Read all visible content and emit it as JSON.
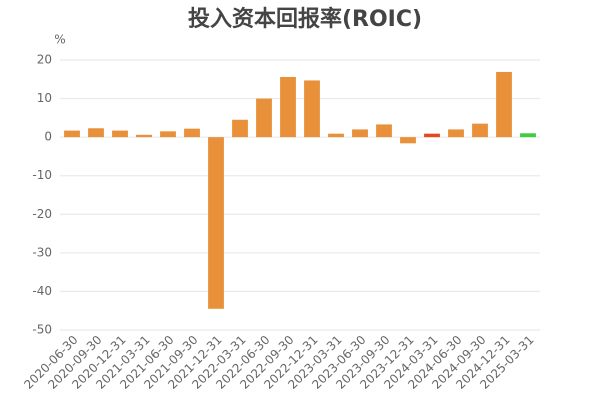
{
  "chart_data": {
    "type": "bar",
    "title": "投入资本回报率(ROIC)",
    "y_label": "%",
    "categories": [
      "2020-06-30",
      "2020-09-30",
      "2020-12-31",
      "2021-03-31",
      "2021-06-30",
      "2021-09-30",
      "2021-12-31",
      "2022-03-31",
      "2022-06-30",
      "2022-09-30",
      "2022-12-31",
      "2023-03-31",
      "2023-06-30",
      "2023-09-30",
      "2023-12-31",
      "2024-03-31",
      "2024-06-30",
      "2024-09-30",
      "2024-12-31",
      "2025-03-31"
    ],
    "values": [
      1.7,
      2.3,
      1.7,
      0.6,
      1.5,
      2.2,
      -44.5,
      4.5,
      10,
      15.6,
      14.7,
      0.9,
      2,
      3.3,
      -1.6,
      0.9,
      2,
      3.5,
      16.9,
      1
    ],
    "colors": [
      "#e8913a",
      "#e8913a",
      "#e8913a",
      "#e8913a",
      "#e8913a",
      "#e8913a",
      "#e8913a",
      "#e8913a",
      "#e8913a",
      "#e8913a",
      "#e8913a",
      "#e8913a",
      "#e8913a",
      "#e8913a",
      "#e8913a",
      "#e8461e",
      "#e8913a",
      "#e8913a",
      "#e8913a",
      "#3fcc3f"
    ],
    "ylim": [
      -50,
      20
    ],
    "yticks": [
      20,
      10,
      0,
      -10,
      -20,
      -30,
      -40,
      -50
    ],
    "grid": true
  }
}
